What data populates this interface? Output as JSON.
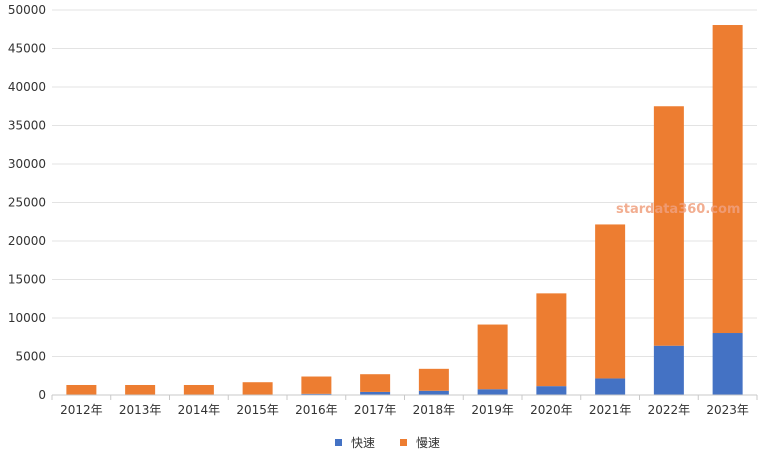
{
  "chart_data": {
    "type": "bar",
    "stacked": true,
    "categories": [
      "2012年",
      "2013年",
      "2014年",
      "2015年",
      "2016年",
      "2017年",
      "2018年",
      "2019年",
      "2020年",
      "2021年",
      "2022年",
      "2023年"
    ],
    "series": [
      {
        "name": "快速",
        "color": "#4472c4",
        "values": [
          50,
          50,
          50,
          60,
          150,
          400,
          550,
          750,
          1150,
          2150,
          6400,
          8050
        ]
      },
      {
        "name": "慢速",
        "color": "#ed7d31",
        "values": [
          1250,
          1250,
          1250,
          1600,
          2250,
          2300,
          2850,
          8400,
          12050,
          20000,
          31100,
          40000
        ]
      }
    ],
    "ylim": [
      0,
      50000
    ],
    "yticks": [
      0,
      5000,
      10000,
      15000,
      20000,
      25000,
      30000,
      35000,
      40000,
      45000,
      50000
    ],
    "grid": true,
    "legend_position": "bottom",
    "watermark": "stardata360.com"
  }
}
